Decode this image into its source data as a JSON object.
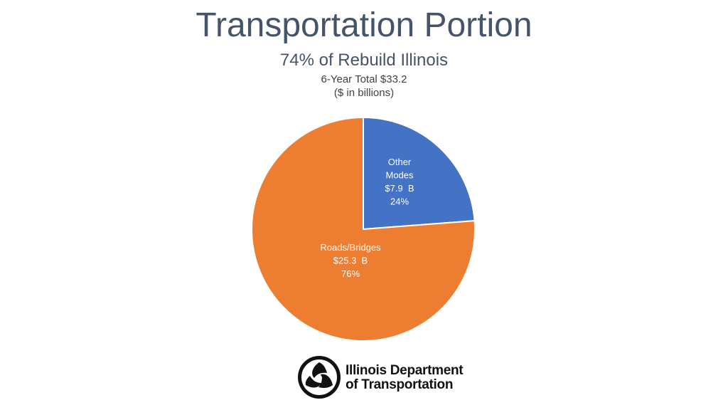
{
  "chart_data": {
    "type": "pie",
    "title": "Transportation Portion",
    "subtitle": "74% of Rebuild Illinois",
    "notes": [
      "6-Year Total $33.2",
      "($ in billions)"
    ],
    "slices": [
      {
        "name": "Other Modes",
        "value": 7.9,
        "percent": 24,
        "color": "#4472c4",
        "label_lines": [
          "Other",
          "Modes",
          "$7.9  B",
          "24%"
        ]
      },
      {
        "name": "Roads/Bridges",
        "value": 25.3,
        "percent": 76,
        "color": "#ed7d31",
        "label_lines": [
          "Roads/Bridges",
          "$25.3  B",
          "76%"
        ]
      }
    ]
  },
  "logo": {
    "line1": "Illinois Department",
    "line2": "of Transportation"
  }
}
